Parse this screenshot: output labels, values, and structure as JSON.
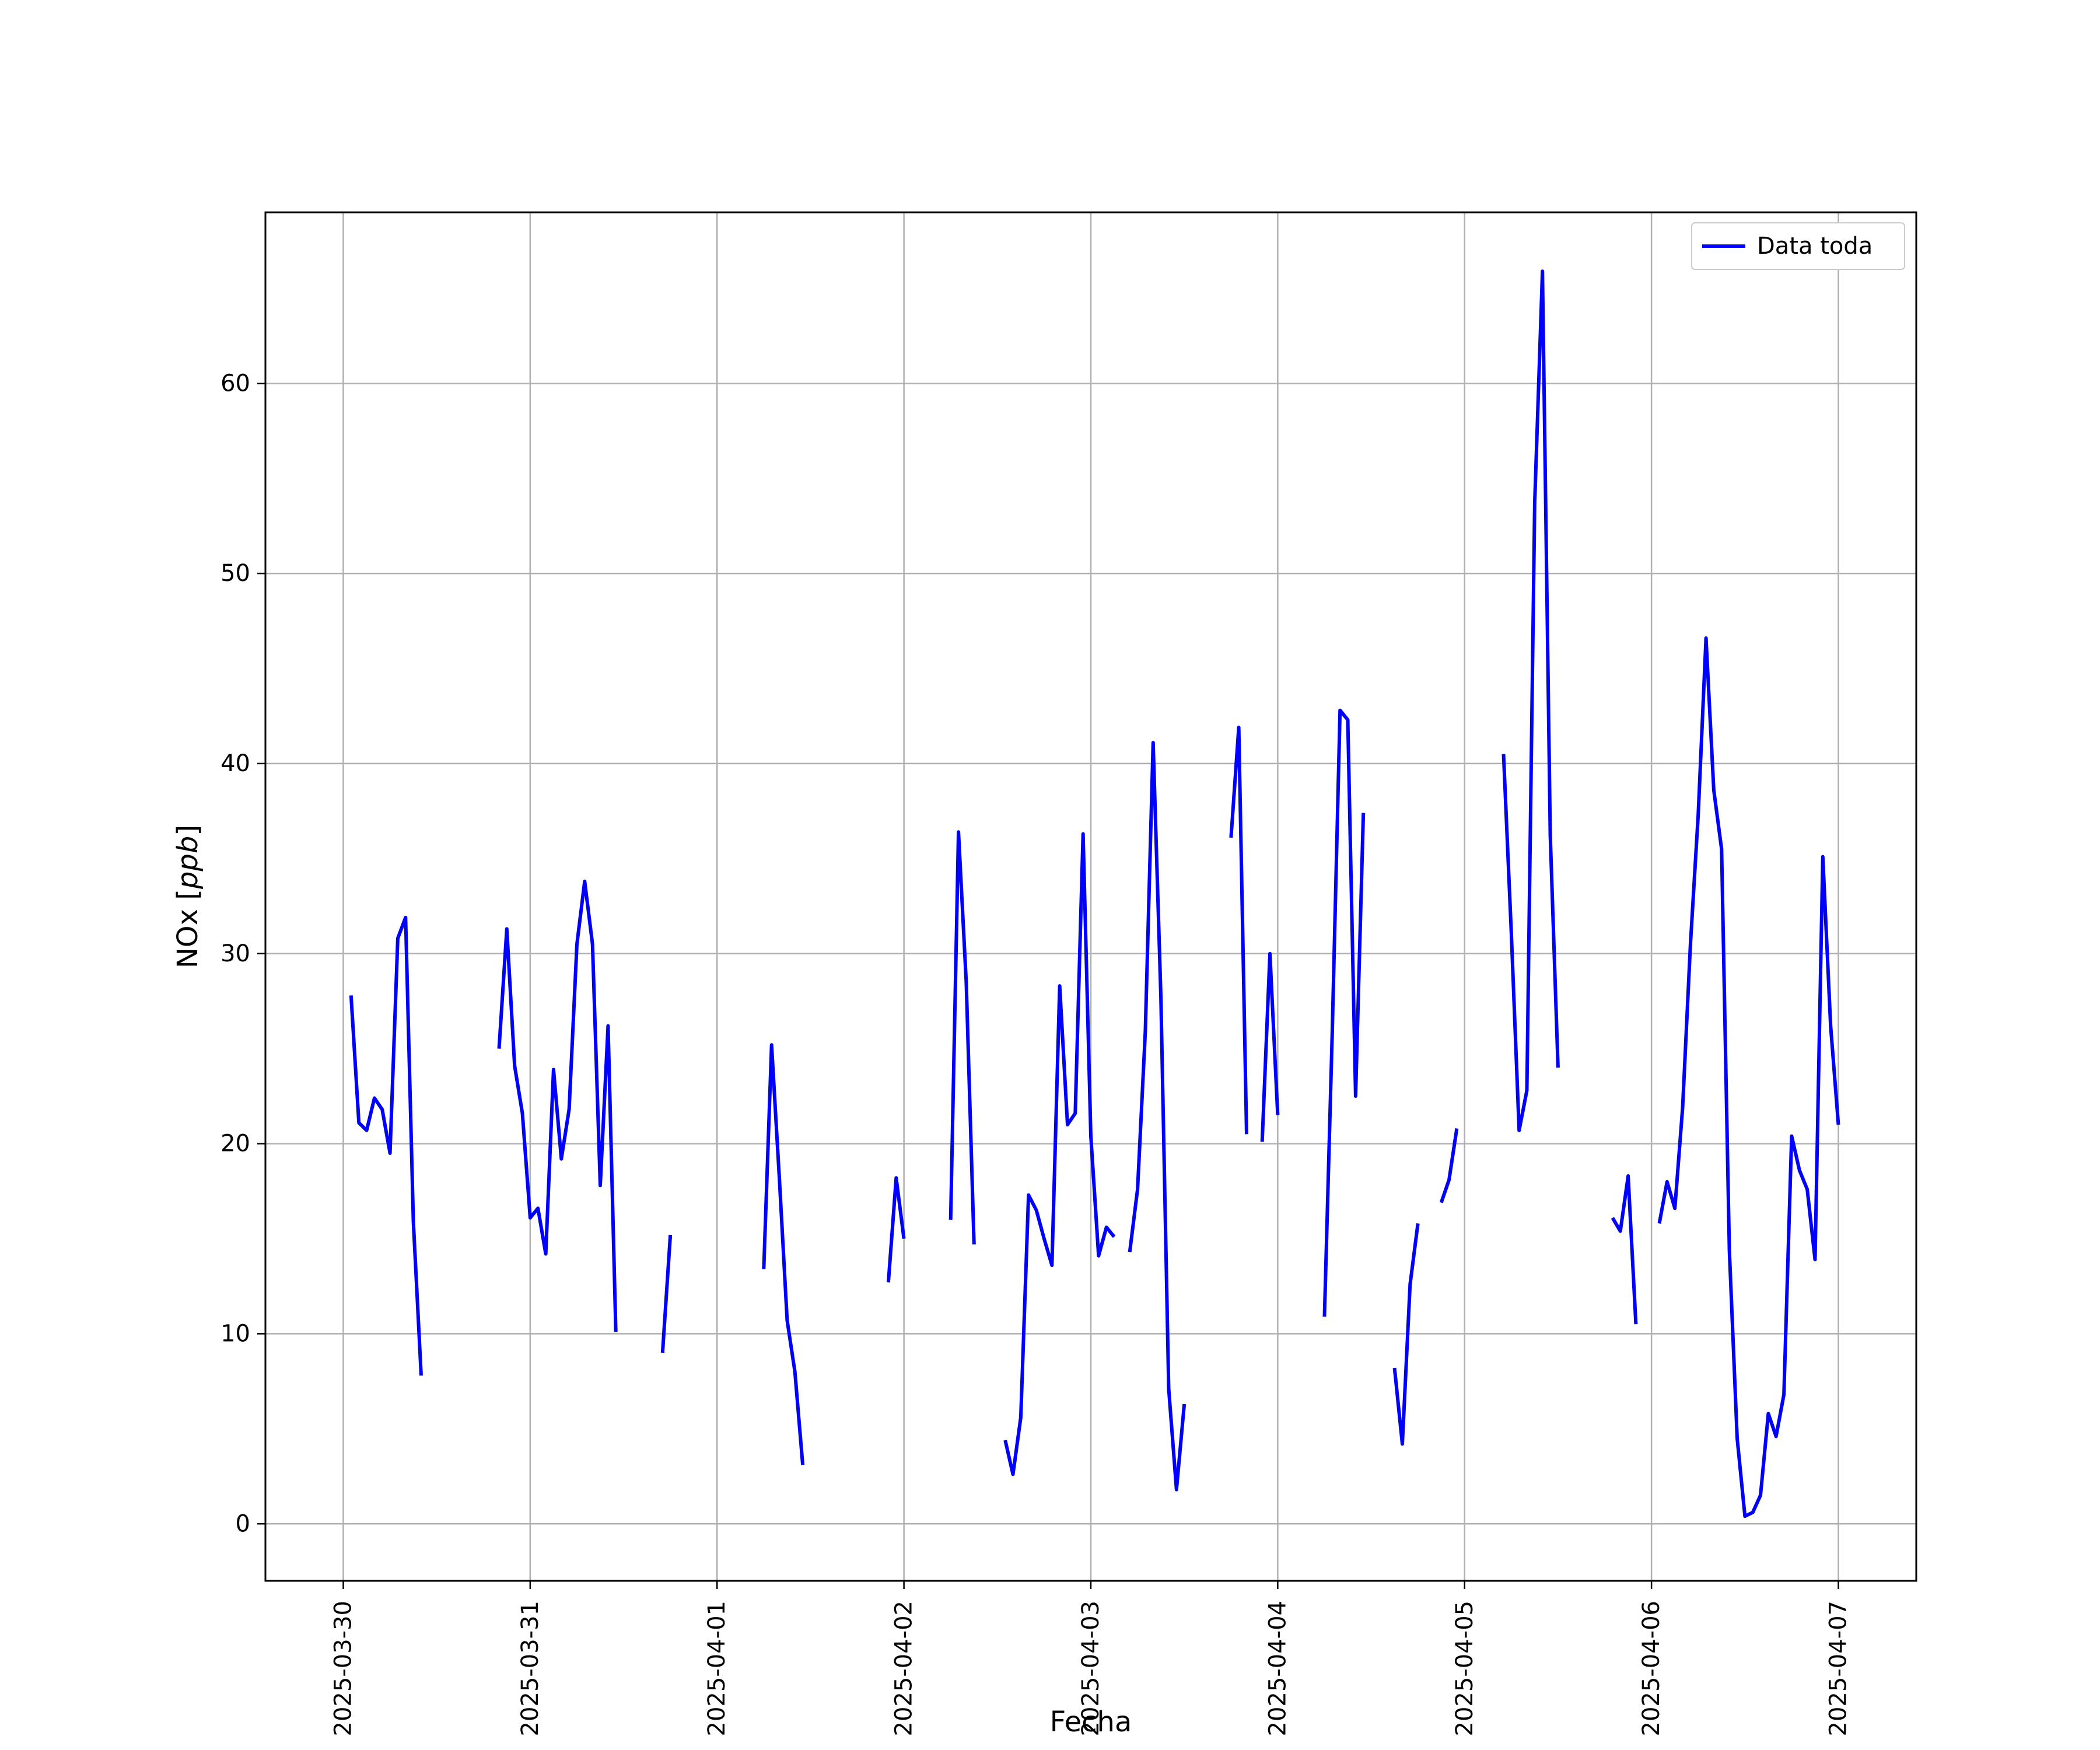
{
  "chart_data": {
    "type": "line",
    "title": "",
    "xlabel": "Fecha",
    "ylabel_prefix": "NOx [",
    "ylabel_unit": "ppb",
    "ylabel_suffix": "]",
    "xlim": [
      "2025-03-29T14:00",
      "2025-04-07T10:00"
    ],
    "ylim": [
      -3,
      69
    ],
    "grid": true,
    "legend_position": "top-right",
    "x_ticks": [
      "2025-03-30",
      "2025-03-31",
      "2025-04-01",
      "2025-04-02",
      "2025-04-03",
      "2025-04-04",
      "2025-04-05",
      "2025-04-06",
      "2025-04-07"
    ],
    "y_ticks": [
      0,
      10,
      20,
      30,
      40,
      50,
      60
    ],
    "series": [
      {
        "name": "Data toda",
        "color": "#0000ff",
        "segments": [
          [
            [
              "2025-03-30T01:00",
              27.8
            ],
            [
              "2025-03-30T02:00",
              21.1
            ],
            [
              "2025-03-30T03:00",
              20.7
            ],
            [
              "2025-03-30T04:00",
              22.4
            ],
            [
              "2025-03-30T05:00",
              21.8
            ],
            [
              "2025-03-30T06:00",
              19.5
            ],
            [
              "2025-03-30T07:00",
              30.8
            ],
            [
              "2025-03-30T08:00",
              31.9
            ],
            [
              "2025-03-30T09:00",
              15.9
            ],
            [
              "2025-03-30T10:00",
              7.8
            ]
          ],
          [
            [
              "2025-03-30T20:00",
              25.0
            ],
            [
              "2025-03-30T21:00",
              31.3
            ],
            [
              "2025-03-30T22:00",
              24.1
            ],
            [
              "2025-03-30T23:00",
              21.6
            ],
            [
              "2025-03-31T00:00",
              16.1
            ],
            [
              "2025-03-31T01:00",
              16.6
            ],
            [
              "2025-03-31T02:00",
              14.2
            ],
            [
              "2025-03-31T03:00",
              23.9
            ],
            [
              "2025-03-31T04:00",
              19.2
            ],
            [
              "2025-03-31T05:00",
              21.8
            ],
            [
              "2025-03-31T06:00",
              30.5
            ],
            [
              "2025-03-31T07:00",
              33.8
            ],
            [
              "2025-03-31T08:00",
              30.5
            ],
            [
              "2025-03-31T09:00",
              17.8
            ],
            [
              "2025-03-31T10:00",
              26.2
            ],
            [
              "2025-03-31T11:00",
              10.1
            ]
          ],
          [
            [
              "2025-03-31T17:00",
              9.0
            ],
            [
              "2025-03-31T18:00",
              15.2
            ]
          ],
          [
            [
              "2025-04-01T06:00",
              13.4
            ],
            [
              "2025-04-01T07:00",
              25.2
            ],
            [
              "2025-04-01T08:00",
              18.2
            ],
            [
              "2025-04-01T09:00",
              10.7
            ],
            [
              "2025-04-01T10:00",
              8.0
            ],
            [
              "2025-04-01T11:00",
              3.1
            ]
          ],
          [
            [
              "2025-04-01T22:00",
              12.7
            ],
            [
              "2025-04-01T23:00",
              18.2
            ],
            [
              "2025-04-02T00:00",
              15.0
            ]
          ],
          [
            [
              "2025-04-02T06:00",
              16.0
            ],
            [
              "2025-04-02T07:00",
              36.4
            ],
            [
              "2025-04-02T08:00",
              28.5
            ],
            [
              "2025-04-02T09:00",
              14.7
            ]
          ],
          [
            [
              "2025-04-02T13:00",
              4.4
            ],
            [
              "2025-04-02T14:00",
              2.6
            ],
            [
              "2025-04-02T15:00",
              5.6
            ],
            [
              "2025-04-02T16:00",
              17.3
            ],
            [
              "2025-04-02T17:00",
              16.5
            ],
            [
              "2025-04-02T18:00",
              15.0
            ],
            [
              "2025-04-02T19:00",
              13.6
            ],
            [
              "2025-04-02T20:00",
              28.3
            ],
            [
              "2025-04-02T21:00",
              21.0
            ],
            [
              "2025-04-02T22:00",
              21.6
            ],
            [
              "2025-04-02T23:00",
              36.3
            ],
            [
              "2025-04-03T00:00",
              20.4
            ],
            [
              "2025-04-03T01:00",
              14.1
            ],
            [
              "2025-04-03T02:00",
              15.6
            ],
            [
              "2025-04-03T03:00",
              15.1
            ]
          ],
          [
            [
              "2025-04-03T05:00",
              14.3
            ],
            [
              "2025-04-03T06:00",
              17.6
            ],
            [
              "2025-04-03T07:00",
              25.9
            ],
            [
              "2025-04-03T08:00",
              41.1
            ],
            [
              "2025-04-03T09:00",
              27.7
            ],
            [
              "2025-04-03T10:00",
              7.1
            ],
            [
              "2025-04-03T11:00",
              1.8
            ],
            [
              "2025-04-03T12:00",
              6.3
            ]
          ],
          [
            [
              "2025-04-03T18:00",
              36.1
            ],
            [
              "2025-04-03T19:00",
              41.9
            ],
            [
              "2025-04-03T20:00",
              20.5
            ]
          ],
          [
            [
              "2025-04-03T22:00",
              20.1
            ],
            [
              "2025-04-03T23:00",
              30.0
            ],
            [
              "2025-04-04T00:00",
              21.5
            ]
          ],
          [
            [
              "2025-04-04T06:00",
              10.9
            ],
            [
              "2025-04-04T07:00",
              25.8
            ],
            [
              "2025-04-04T08:00",
              42.8
            ],
            [
              "2025-04-04T09:00",
              42.3
            ],
            [
              "2025-04-04T10:00",
              22.5
            ],
            [
              "2025-04-04T11:00",
              37.4
            ]
          ],
          [
            [
              "2025-04-04T15:00",
              8.2
            ],
            [
              "2025-04-04T16:00",
              4.2
            ],
            [
              "2025-04-04T17:00",
              12.6
            ],
            [
              "2025-04-04T18:00",
              15.8
            ]
          ],
          [
            [
              "2025-04-04T21:00",
              16.9
            ],
            [
              "2025-04-04T22:00",
              18.1
            ],
            [
              "2025-04-04T23:00",
              20.8
            ]
          ],
          [
            [
              "2025-04-05T05:00",
              40.5
            ],
            [
              "2025-04-05T06:00",
              31.1
            ],
            [
              "2025-04-05T07:00",
              20.7
            ],
            [
              "2025-04-05T08:00",
              22.8
            ],
            [
              "2025-04-05T09:00",
              53.7
            ],
            [
              "2025-04-05T10:00",
              65.9
            ],
            [
              "2025-04-05T11:00",
              36.2
            ],
            [
              "2025-04-05T12:00",
              24.0
            ]
          ],
          [
            [
              "2025-04-05T19:00",
              16.1
            ],
            [
              "2025-04-05T20:00",
              15.4
            ],
            [
              "2025-04-05T21:00",
              18.3
            ],
            [
              "2025-04-05T22:00",
              10.5
            ]
          ],
          [
            [
              "2025-04-06T01:00",
              15.8
            ],
            [
              "2025-04-06T02:00",
              18.0
            ],
            [
              "2025-04-06T03:00",
              16.6
            ],
            [
              "2025-04-06T04:00",
              21.9
            ],
            [
              "2025-04-06T05:00",
              30.5
            ],
            [
              "2025-04-06T06:00",
              37.3
            ],
            [
              "2025-04-06T07:00",
              46.6
            ],
            [
              "2025-04-06T08:00",
              38.6
            ],
            [
              "2025-04-06T09:00",
              35.5
            ],
            [
              "2025-04-06T10:00",
              14.4
            ],
            [
              "2025-04-06T11:00",
              4.5
            ],
            [
              "2025-04-06T12:00",
              0.4
            ],
            [
              "2025-04-06T13:00",
              0.6
            ],
            [
              "2025-04-06T14:00",
              1.5
            ],
            [
              "2025-04-06T15:00",
              5.8
            ],
            [
              "2025-04-06T16:00",
              4.6
            ],
            [
              "2025-04-06T17:00",
              6.8
            ],
            [
              "2025-04-06T18:00",
              20.4
            ],
            [
              "2025-04-06T19:00",
              18.6
            ],
            [
              "2025-04-06T20:00",
              17.6
            ],
            [
              "2025-04-06T21:00",
              13.9
            ],
            [
              "2025-04-06T22:00",
              35.1
            ],
            [
              "2025-04-06T23:00",
              26.2
            ],
            [
              "2025-04-07T00:00",
              21.0
            ]
          ]
        ]
      }
    ]
  }
}
